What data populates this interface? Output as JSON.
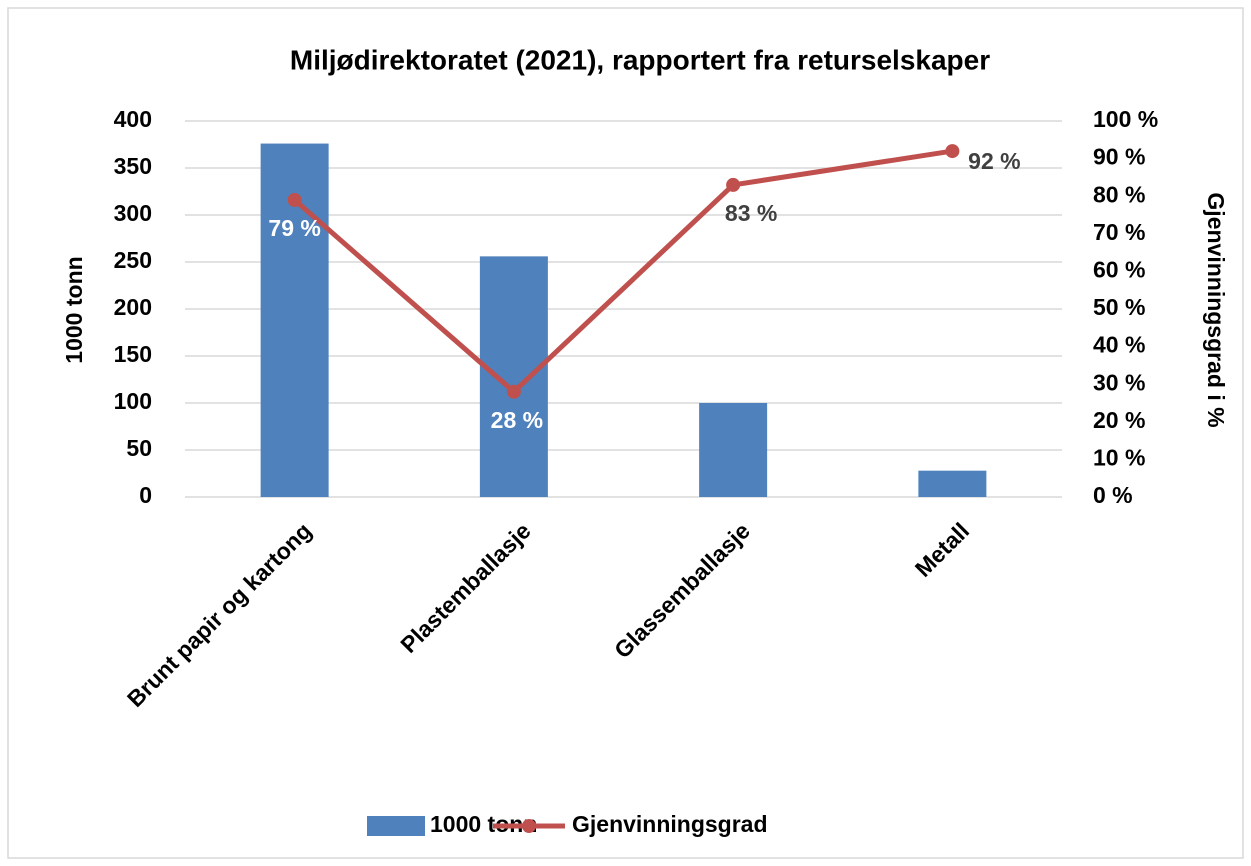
{
  "chart_data": {
    "type": "bar+line",
    "title": "Miljødirektoratet (2021), rapportert fra returselskaper",
    "categories": [
      "Brunt papir og kartong",
      "Plastemballasje",
      "Glassemballasje",
      "Metall"
    ],
    "series": [
      {
        "name": "1000 tonn",
        "type": "bar",
        "color": "#4f81bd",
        "values": [
          376,
          256,
          100,
          28
        ]
      },
      {
        "name": "Gjenvinningsgrad",
        "type": "line",
        "axis": "y2",
        "color": "#c0504d",
        "values": [
          79,
          28,
          83,
          92
        ],
        "value_labels": [
          "79 %",
          "28 %",
          "83 %",
          "92 %"
        ]
      }
    ],
    "ylabel": "1000 tonn",
    "y2label": "Gjenvinningsgrad i %",
    "ylim": [
      0,
      400
    ],
    "yticks": [
      0,
      50,
      100,
      150,
      200,
      250,
      300,
      350,
      400
    ],
    "y2lim": [
      0,
      100
    ],
    "y2ticks": [
      {
        "value": 0,
        "label": "0 %"
      },
      {
        "value": 10,
        "label": "10 %"
      },
      {
        "value": 20,
        "label": "20 %"
      },
      {
        "value": 30,
        "label": "30 %"
      },
      {
        "value": 40,
        "label": "40 %"
      },
      {
        "value": 50,
        "label": "50 %"
      },
      {
        "value": 60,
        "label": "60 %"
      },
      {
        "value": 70,
        "label": "70 %"
      },
      {
        "value": 80,
        "label": "80 %"
      },
      {
        "value": 90,
        "label": "90 %"
      },
      {
        "value": 100,
        "label": "100 %"
      }
    ],
    "grid": true,
    "legend": "bottom"
  }
}
